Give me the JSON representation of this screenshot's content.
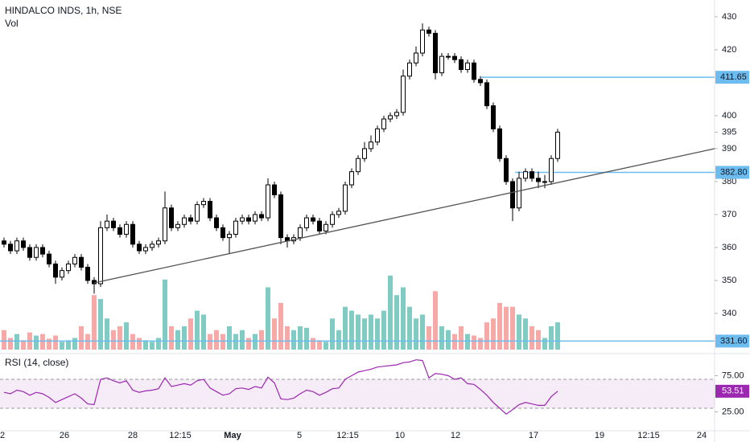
{
  "chart_data": {
    "type": "candlestick",
    "title": "HINDALCO INDS, 1h, NSE",
    "volume_label": "Vol",
    "up_color": "#ffffff",
    "down_color": "#000000",
    "volume_up_color": "#80cbc4",
    "volume_down_color": "#f7a9a7",
    "open": [
      362,
      361,
      359,
      362,
      360,
      357,
      360,
      358,
      355,
      351,
      353,
      355,
      357,
      354,
      350,
      349,
      366,
      368,
      366,
      364,
      367,
      361,
      359,
      360,
      361,
      362,
      372,
      366,
      367,
      369,
      368,
      373,
      374,
      369,
      366,
      363,
      364,
      368,
      369,
      368,
      370,
      369,
      379,
      376,
      363,
      362,
      363,
      366,
      369,
      368,
      365,
      367,
      370,
      371,
      379,
      383,
      387,
      390,
      392,
      396,
      399,
      400,
      401,
      412,
      416,
      419,
      426,
      425,
      413,
      418,
      418,
      417,
      414,
      416,
      411,
      410,
      403,
      396,
      387,
      380,
      372,
      381,
      383,
      381,
      380,
      380,
      387
    ],
    "high": [
      363,
      362,
      363,
      363,
      361,
      361,
      361,
      359,
      356,
      354,
      356,
      358,
      358,
      355,
      351,
      368,
      370,
      369,
      367,
      368,
      368,
      362,
      361,
      362,
      363,
      377,
      373,
      368,
      370,
      370,
      374,
      375,
      375,
      370,
      367,
      365,
      369,
      370,
      370,
      371,
      371,
      381,
      380,
      377,
      364,
      364,
      367,
      370,
      370,
      369,
      368,
      371,
      372,
      380,
      384,
      388,
      392,
      394,
      397,
      400,
      401,
      402,
      414,
      417,
      421,
      428,
      427,
      426,
      419,
      419,
      419,
      418,
      417,
      417,
      412,
      411,
      404,
      397,
      388,
      381,
      383,
      384,
      384,
      383,
      382,
      388,
      396
    ],
    "low": [
      360,
      358,
      358,
      359,
      356,
      356,
      357,
      354,
      349,
      350,
      352,
      354,
      353,
      349,
      346,
      348,
      365,
      365,
      363,
      363,
      360,
      358,
      358,
      359,
      360,
      361,
      365,
      365,
      366,
      367,
      367,
      372,
      368,
      365,
      362,
      358,
      363,
      367,
      367,
      367,
      368,
      368,
      375,
      361,
      360,
      361,
      362,
      365,
      367,
      364,
      364,
      366,
      369,
      370,
      378,
      382,
      386,
      389,
      391,
      395,
      398,
      399,
      400,
      411,
      415,
      418,
      424,
      411,
      412,
      417,
      416,
      413,
      413,
      410,
      409,
      402,
      395,
      386,
      379,
      368,
      371,
      380,
      380,
      378,
      378,
      379,
      386
    ],
    "close": [
      361,
      359,
      362,
      360,
      357,
      360,
      358,
      355,
      351,
      353,
      355,
      357,
      354,
      350,
      349,
      366,
      368,
      366,
      364,
      367,
      361,
      359,
      360,
      361,
      362,
      372,
      366,
      367,
      369,
      368,
      373,
      374,
      369,
      366,
      363,
      364,
      368,
      369,
      368,
      370,
      369,
      379,
      376,
      363,
      362,
      363,
      366,
      369,
      368,
      365,
      367,
      370,
      371,
      379,
      383,
      387,
      390,
      392,
      396,
      399,
      400,
      401,
      412,
      416,
      419,
      426,
      425,
      413,
      418,
      418,
      417,
      414,
      416,
      411,
      410,
      403,
      396,
      387,
      380,
      372,
      381,
      383,
      381,
      380,
      380,
      387,
      395
    ],
    "volume": [
      25,
      15,
      20,
      12,
      22,
      18,
      20,
      14,
      18,
      10,
      12,
      15,
      30,
      20,
      70,
      65,
      40,
      25,
      30,
      35,
      20,
      15,
      12,
      10,
      15,
      90,
      30,
      25,
      30,
      40,
      50,
      45,
      20,
      25,
      20,
      30,
      20,
      25,
      15,
      20,
      25,
      80,
      40,
      60,
      30,
      25,
      30,
      28,
      15,
      12,
      10,
      40,
      25,
      55,
      50,
      45,
      40,
      45,
      40,
      50,
      95,
      70,
      80,
      55,
      40,
      45,
      30,
      75,
      30,
      25,
      20,
      30,
      20,
      18,
      15,
      35,
      40,
      60,
      55,
      55,
      45,
      40,
      30,
      25,
      15,
      30,
      35
    ],
    "ylim": [
      327.8,
      435.1
    ],
    "yticks": [
      430,
      420,
      400,
      395,
      390,
      380,
      370,
      360,
      350,
      340
    ],
    "levels": [
      {
        "value": 411.65,
        "label": "411.65"
      },
      {
        "value": 382.8,
        "label": "382.80"
      },
      {
        "value": 331.6,
        "label": "331.60"
      }
    ],
    "level_color": "#6cbcf0",
    "x_labels": [
      "2",
      "26",
      "28",
      "12:15",
      "May",
      "5",
      "12:15",
      "10",
      "12",
      "17",
      "19",
      "12:15",
      "24"
    ],
    "rsi": {
      "title": "RSI (14, close)",
      "color": "#9c27b0",
      "values": [
        52,
        50,
        55,
        53,
        48,
        52,
        50,
        45,
        38,
        42,
        46,
        50,
        44,
        36,
        35,
        70,
        72,
        68,
        65,
        68,
        55,
        52,
        54,
        55,
        57,
        72,
        60,
        62,
        64,
        62,
        68,
        70,
        58,
        53,
        48,
        50,
        57,
        58,
        56,
        60,
        58,
        73,
        65,
        43,
        42,
        44,
        50,
        55,
        53,
        48,
        52,
        57,
        58,
        70,
        75,
        80,
        82,
        84,
        87,
        88,
        89,
        90,
        93,
        94,
        97,
        96,
        72,
        78,
        77,
        75,
        70,
        72,
        64,
        63,
        56,
        48,
        38,
        30,
        22,
        28,
        35,
        38,
        36,
        34,
        34,
        46,
        53.51
      ],
      "last_label": "53.51",
      "ylim": [
        0,
        100
      ],
      "band": [
        70,
        30
      ],
      "yticks": [
        {
          "value": 75,
          "label": "75.00"
        },
        {
          "value": 25,
          "label": "25.00"
        }
      ]
    }
  }
}
